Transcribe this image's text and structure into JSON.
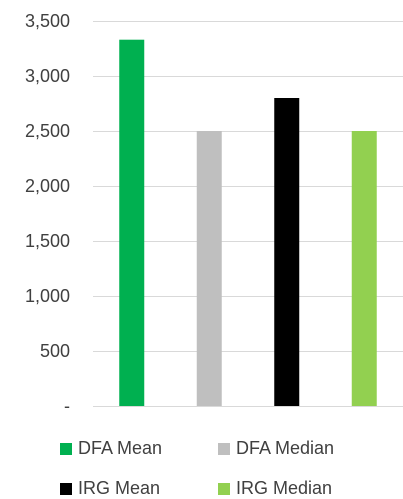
{
  "chart_data": {
    "type": "bar",
    "title": "",
    "xlabel": "",
    "ylabel": "",
    "ylim": [
      0,
      3500
    ],
    "yticks": [
      {
        "value": 0,
        "label": "-"
      },
      {
        "value": 500,
        "label": "500"
      },
      {
        "value": 1000,
        "label": "1,000"
      },
      {
        "value": 1500,
        "label": "1,500"
      },
      {
        "value": 2000,
        "label": "2,000"
      },
      {
        "value": 2500,
        "label": "2,500"
      },
      {
        "value": 3000,
        "label": "3,000"
      },
      {
        "value": 3500,
        "label": "3,500"
      }
    ],
    "grid": true,
    "legend_position": "bottom",
    "series": [
      {
        "name": "DFA Mean",
        "values": [
          3330
        ],
        "color": "#00b050"
      },
      {
        "name": "DFA Median",
        "values": [
          2500
        ],
        "color": "#bfbfbf"
      },
      {
        "name": "IRG Mean",
        "values": [
          2800
        ],
        "color": "#000000"
      },
      {
        "name": "IRG Median",
        "values": [
          2500
        ],
        "color": "#92d050"
      }
    ]
  }
}
